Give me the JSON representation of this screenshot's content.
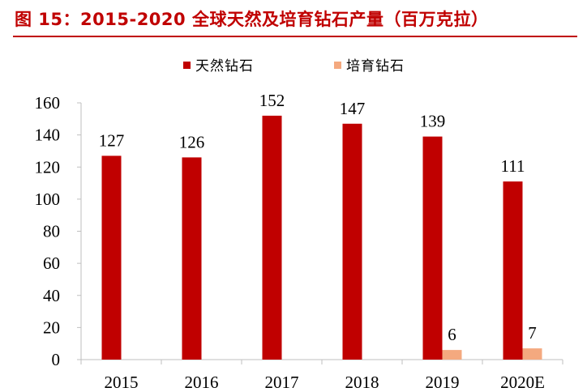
{
  "figure": {
    "title": "图 15：2015-2020 全球天然及培育钻石产量（百万克拉）"
  },
  "colors": {
    "title": "#c00000",
    "natural": "#c00000",
    "lab": "#f4a97f",
    "axis": "#bfbfbf"
  },
  "chart_data": {
    "type": "bar",
    "title": "",
    "xlabel": "",
    "ylabel": "",
    "categories": [
      "2015",
      "2016",
      "2017",
      "2018",
      "2019",
      "2020E"
    ],
    "series": [
      {
        "name": "天然钻石",
        "values": [
          127,
          126,
          152,
          147,
          139,
          111
        ],
        "labels": [
          "127",
          "126",
          "152",
          "147",
          "139",
          "111"
        ]
      },
      {
        "name": "培育钻石",
        "values": [
          null,
          null,
          null,
          null,
          6,
          7
        ],
        "labels": [
          null,
          null,
          null,
          null,
          "6",
          "7"
        ]
      }
    ],
    "ylim": [
      0,
      160
    ],
    "yticks": [
      "0",
      "20",
      "40",
      "60",
      "80",
      "100",
      "120",
      "140",
      "160"
    ],
    "grid": false,
    "legend": "top-center"
  }
}
